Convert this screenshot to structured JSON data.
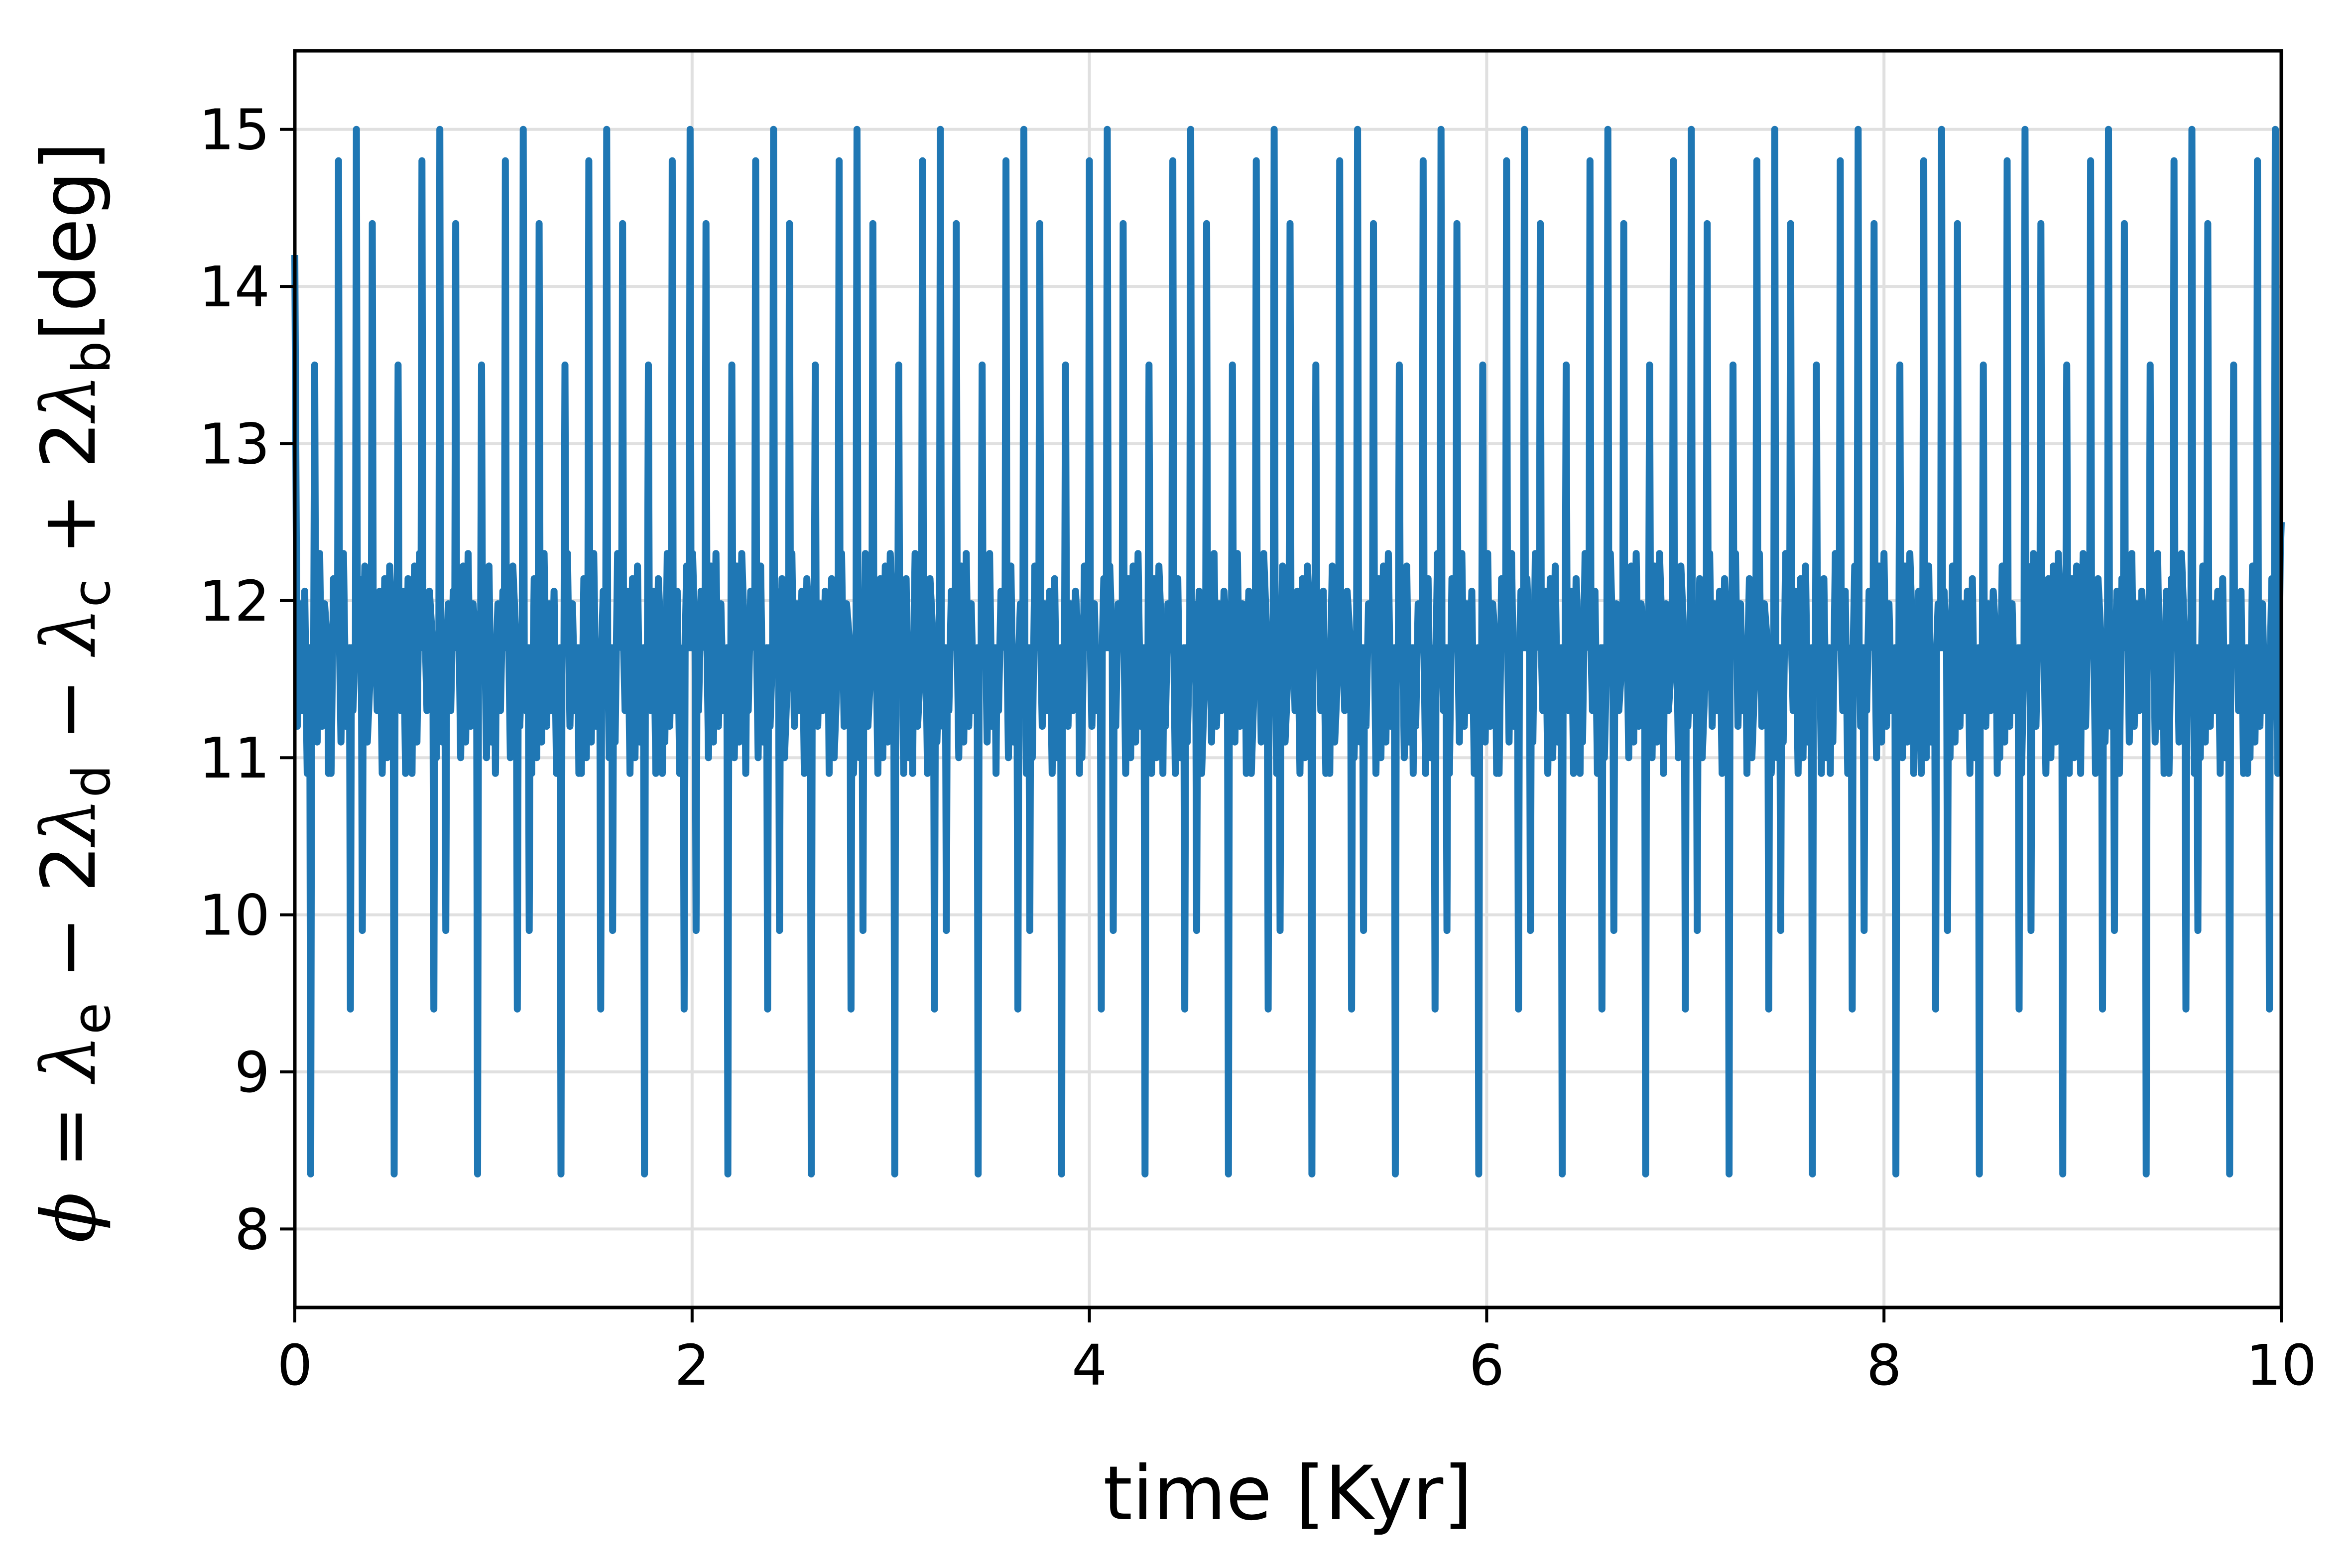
{
  "chart_data": {
    "type": "line",
    "title": "",
    "xlabel": "time [Kyr]",
    "ylabel": {
      "phi": "ϕ",
      "eq": " = ",
      "lambda": "λ",
      "sub_e": "e",
      "sub_d": "d",
      "sub_c": "c",
      "sub_b": "b",
      "minus": " − ",
      "plus": " + ",
      "two": "2",
      "unit": "[deg]"
    },
    "xlim": [
      0,
      10
    ],
    "ylim": [
      7.5,
      15.5
    ],
    "xticks": [
      0,
      2,
      4,
      6,
      8,
      10
    ],
    "xtick_labels": [
      "0",
      "2",
      "4",
      "6",
      "8",
      "10"
    ],
    "yticks": [
      8,
      9,
      10,
      11,
      12,
      13,
      14,
      15
    ],
    "ytick_labels": [
      "8",
      "9",
      "10",
      "11",
      "12",
      "13",
      "14",
      "15"
    ],
    "grid": true,
    "line_color": "#1f77b4",
    "series": [
      {
        "pattern": {
          "start": {
            "x": 0,
            "y": 14.2
          },
          "end": {
            "x": 10,
            "y": 12.5
          },
          "center": 11.7,
          "inner_low": 10.9,
          "inner_high": 12.3,
          "cycle_period": 0.42,
          "cycle_peaks": [
            {
              "offset": 0.1,
              "y": 13.5
            },
            {
              "offset": 0.22,
              "y": 14.8
            },
            {
              "offset": 0.31,
              "y": 15.0
            },
            {
              "offset": 0.39,
              "y": 14.4
            }
          ],
          "cycle_troughs": [
            {
              "offset": 0.08,
              "y": 8.35
            },
            {
              "offset": 0.17,
              "y": 10.9
            },
            {
              "offset": 0.28,
              "y": 9.4
            },
            {
              "offset": 0.34,
              "y": 9.9
            }
          ]
        }
      }
    ]
  }
}
